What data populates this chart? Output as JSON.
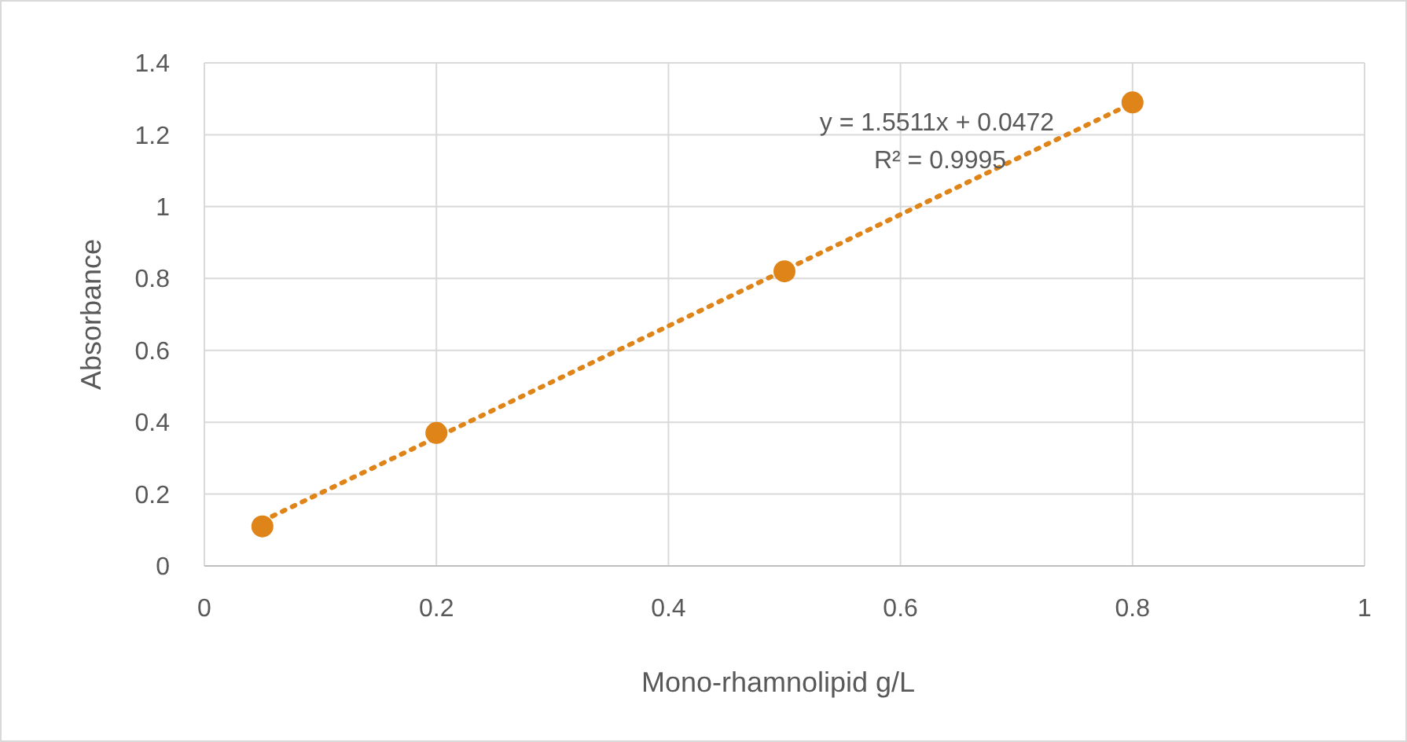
{
  "chart_data": {
    "type": "scatter",
    "xlabel": "Mono-rhamnolipid g/L",
    "ylabel": "Absorbance",
    "xlim": [
      0,
      1
    ],
    "xticks": [
      0,
      0.2,
      0.4,
      0.6,
      0.8,
      1
    ],
    "ylim": [
      0,
      1.4
    ],
    "yticks": [
      0,
      0.2,
      0.4,
      0.6,
      0.8,
      1,
      1.2,
      1.4
    ],
    "grid": true,
    "marker": "circle",
    "series": [
      {
        "color": "#df8418",
        "x": [
          0.05,
          0.2,
          0.5,
          0.8
        ],
        "values": [
          0.11,
          0.37,
          0.82,
          1.29
        ]
      },
      {
        "type": "line",
        "color": "#df8418",
        "line_style": "dotted",
        "marker": "none",
        "x": [
          0.05,
          0.8
        ],
        "values": [
          0.125,
          1.288
        ]
      }
    ],
    "annotations": [
      "y = 1.5511x + 0.0472",
      "R² = 0.9995"
    ]
  }
}
